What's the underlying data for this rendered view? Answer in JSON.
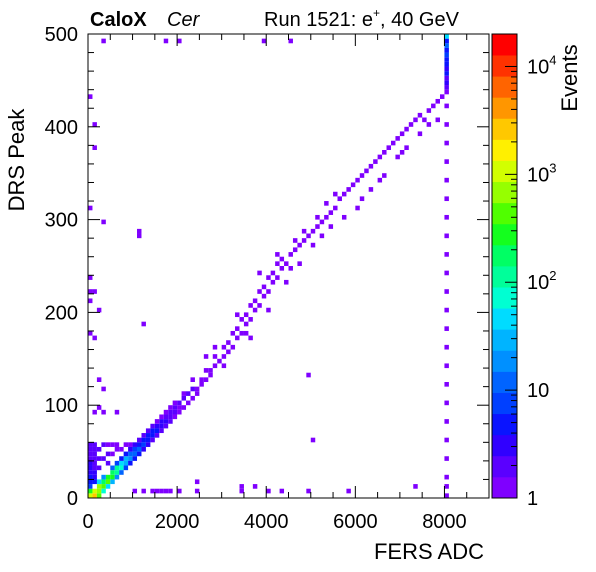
{
  "header": {
    "experiment": "CaloX",
    "channel": "Cer",
    "run_prefix": "Run 1521: e",
    "run_superscript": "+",
    "run_suffix": ", 40 GeV"
  },
  "chart_data": {
    "type": "heatmap",
    "xlabel": "FERS ADC",
    "ylabel": "DRS Peak",
    "zlabel": "Events",
    "xlim": [
      0,
      9000
    ],
    "ylim": [
      0,
      500
    ],
    "zlim": [
      1,
      20000
    ],
    "zscale": "log",
    "grid": false,
    "x_ticks": [
      "0",
      "2000",
      "4000",
      "6000",
      "8000"
    ],
    "x_tick_values": [
      0,
      2000,
      4000,
      6000,
      8000
    ],
    "y_ticks": [
      "0",
      "100",
      "200",
      "300",
      "400",
      "500"
    ],
    "y_tick_values": [
      0,
      100,
      200,
      300,
      400,
      500
    ],
    "z_ticks": [
      {
        "value": 1,
        "base": "1",
        "exp": ""
      },
      {
        "value": 10,
        "base": "10",
        "exp": ""
      },
      {
        "value": 100,
        "base": "10",
        "exp": "2"
      },
      {
        "value": 1000,
        "base": "10",
        "exp": "3"
      },
      {
        "value": 10000,
        "base": "10",
        "exp": "4"
      }
    ],
    "palette": [
      "#7f00ff",
      "#5a00ff",
      "#3000ff",
      "#0a14ff",
      "#0040ff",
      "#0064ff",
      "#0090ff",
      "#00b4ff",
      "#00dcff",
      "#00ffd2",
      "#00ff9a",
      "#00ff64",
      "#14ff1e",
      "#50ff00",
      "#96ff00",
      "#d2ff00",
      "#fff000",
      "#ffc800",
      "#ff9600",
      "#ff6400",
      "#ff3200",
      "#ff0000"
    ],
    "bin_size": [
      100,
      5
    ],
    "cells": [
      [
        0,
        0,
        900
      ],
      [
        0,
        5,
        300
      ],
      [
        100,
        0,
        3000
      ],
      [
        100,
        5,
        1200
      ],
      [
        200,
        0,
        500
      ],
      [
        200,
        5,
        800
      ],
      [
        200,
        10,
        600
      ],
      [
        300,
        10,
        400
      ],
      [
        300,
        15,
        200
      ],
      [
        400,
        15,
        350
      ],
      [
        400,
        20,
        300
      ],
      [
        500,
        20,
        250
      ],
      [
        500,
        25,
        150
      ],
      [
        600,
        25,
        120
      ],
      [
        600,
        30,
        100
      ],
      [
        700,
        30,
        60
      ],
      [
        700,
        35,
        40
      ],
      [
        800,
        35,
        30
      ],
      [
        800,
        40,
        25
      ],
      [
        900,
        40,
        15
      ],
      [
        900,
        45,
        10
      ],
      [
        1000,
        45,
        12
      ],
      [
        1000,
        50,
        8
      ],
      [
        1100,
        50,
        10
      ],
      [
        1100,
        55,
        6
      ],
      [
        1200,
        55,
        8
      ],
      [
        1200,
        60,
        6
      ],
      [
        1300,
        60,
        6
      ],
      [
        1300,
        65,
        5
      ],
      [
        1400,
        65,
        5
      ],
      [
        1400,
        70,
        4
      ],
      [
        1500,
        70,
        4
      ],
      [
        1500,
        75,
        3
      ],
      [
        1600,
        75,
        3
      ],
      [
        1600,
        80,
        3
      ],
      [
        1700,
        80,
        3
      ],
      [
        1700,
        85,
        2
      ],
      [
        1800,
        85,
        2
      ],
      [
        1800,
        90,
        2
      ],
      [
        1900,
        90,
        2
      ],
      [
        1900,
        95,
        2
      ],
      [
        2000,
        100,
        2
      ],
      [
        2100,
        105,
        2
      ],
      [
        2200,
        110,
        2
      ],
      [
        2300,
        115,
        2
      ],
      [
        300,
        5,
        60
      ],
      [
        400,
        10,
        40
      ],
      [
        500,
        15,
        30
      ],
      [
        200,
        15,
        40
      ],
      [
        300,
        20,
        20
      ],
      [
        600,
        20,
        15
      ],
      [
        500,
        30,
        10
      ],
      [
        700,
        25,
        12
      ],
      [
        800,
        30,
        8
      ],
      [
        900,
        35,
        6
      ],
      [
        600,
        35,
        8
      ],
      [
        700,
        40,
        6
      ],
      [
        1000,
        40,
        5
      ],
      [
        800,
        45,
        4
      ],
      [
        900,
        50,
        3
      ],
      [
        1100,
        45,
        4
      ],
      [
        1200,
        50,
        3
      ],
      [
        1000,
        55,
        3
      ],
      [
        1300,
        55,
        3
      ],
      [
        1100,
        60,
        2
      ],
      [
        1400,
        60,
        2
      ],
      [
        1200,
        65,
        2
      ],
      [
        1500,
        65,
        2
      ],
      [
        1600,
        70,
        2
      ],
      [
        1300,
        70,
        2
      ],
      [
        1700,
        75,
        2
      ],
      [
        1400,
        75,
        2
      ],
      [
        1800,
        80,
        2
      ],
      [
        1500,
        80,
        1
      ],
      [
        1900,
        85,
        1
      ],
      [
        1600,
        85,
        1
      ],
      [
        2000,
        90,
        1
      ],
      [
        2100,
        95,
        1
      ],
      [
        1700,
        90,
        1
      ],
      [
        2200,
        100,
        1
      ],
      [
        1800,
        95,
        1
      ],
      [
        2300,
        105,
        1
      ],
      [
        2400,
        110,
        1
      ],
      [
        2000,
        95,
        1
      ],
      [
        1900,
        100,
        1
      ],
      [
        0,
        10,
        8
      ],
      [
        0,
        15,
        5
      ],
      [
        0,
        20,
        4
      ],
      [
        0,
        25,
        3
      ],
      [
        0,
        30,
        3
      ],
      [
        0,
        35,
        3
      ],
      [
        0,
        40,
        2
      ],
      [
        0,
        45,
        2
      ],
      [
        0,
        50,
        2
      ],
      [
        0,
        55,
        2
      ],
      [
        100,
        15,
        5
      ],
      [
        100,
        20,
        3
      ],
      [
        100,
        25,
        3
      ],
      [
        100,
        30,
        2
      ],
      [
        100,
        35,
        2
      ],
      [
        100,
        40,
        2
      ],
      [
        100,
        45,
        2
      ],
      [
        100,
        50,
        2
      ],
      [
        100,
        55,
        2
      ],
      [
        200,
        30,
        2
      ],
      [
        200,
        40,
        2
      ],
      [
        200,
        50,
        2
      ],
      [
        300,
        40,
        2
      ],
      [
        300,
        55,
        2
      ],
      [
        400,
        35,
        2
      ],
      [
        400,
        45,
        2
      ],
      [
        500,
        45,
        1
      ],
      [
        600,
        50,
        1
      ],
      [
        700,
        50,
        1
      ],
      [
        800,
        55,
        1
      ],
      [
        900,
        55,
        1
      ],
      [
        400,
        55,
        1
      ],
      [
        500,
        55,
        1
      ],
      [
        600,
        55,
        1
      ],
      [
        2400,
        115,
        1
      ],
      [
        2500,
        120,
        1
      ],
      [
        2600,
        125,
        1
      ],
      [
        2500,
        125,
        1
      ],
      [
        2700,
        130,
        1
      ],
      [
        2600,
        135,
        1
      ],
      [
        2800,
        140,
        1
      ],
      [
        2700,
        135,
        1
      ],
      [
        2900,
        145,
        1
      ],
      [
        3000,
        150,
        1
      ],
      [
        2800,
        150,
        1
      ],
      [
        3100,
        155,
        1
      ],
      [
        3000,
        160,
        1
      ],
      [
        3200,
        160,
        1
      ],
      [
        3100,
        165,
        1
      ],
      [
        3300,
        170,
        1
      ],
      [
        3200,
        175,
        1
      ],
      [
        3400,
        175,
        1
      ],
      [
        3300,
        180,
        1
      ],
      [
        3500,
        185,
        1
      ],
      [
        3400,
        190,
        1
      ],
      [
        3600,
        190,
        1
      ],
      [
        3500,
        195,
        1
      ],
      [
        3700,
        200,
        1
      ],
      [
        3600,
        205,
        1
      ],
      [
        3800,
        205,
        1
      ],
      [
        3700,
        210,
        1
      ],
      [
        3900,
        215,
        1
      ],
      [
        3800,
        220,
        1
      ],
      [
        4000,
        220,
        1
      ],
      [
        3900,
        225,
        1
      ],
      [
        4100,
        230,
        1
      ],
      [
        4000,
        235,
        1
      ],
      [
        4200,
        235,
        1
      ],
      [
        4100,
        240,
        1
      ],
      [
        4300,
        245,
        1
      ],
      [
        4200,
        250,
        1
      ],
      [
        4400,
        250,
        1
      ],
      [
        4300,
        255,
        1
      ],
      [
        4500,
        260,
        1
      ],
      [
        4600,
        265,
        1
      ],
      [
        4700,
        270,
        1
      ],
      [
        4800,
        275,
        1
      ],
      [
        4600,
        275,
        1
      ],
      [
        4900,
        280,
        1
      ],
      [
        5000,
        285,
        1
      ],
      [
        4800,
        285,
        1
      ],
      [
        5100,
        290,
        1
      ],
      [
        5200,
        295,
        1
      ],
      [
        5300,
        300,
        1
      ],
      [
        5100,
        300,
        1
      ],
      [
        5400,
        305,
        1
      ],
      [
        5500,
        310,
        1
      ],
      [
        5300,
        315,
        1
      ],
      [
        5600,
        320,
        1
      ],
      [
        5700,
        325,
        1
      ],
      [
        5500,
        325,
        1
      ],
      [
        5800,
        330,
        1
      ],
      [
        5900,
        335,
        1
      ],
      [
        6000,
        340,
        1
      ],
      [
        6100,
        345,
        1
      ],
      [
        6200,
        350,
        1
      ],
      [
        6300,
        355,
        1
      ],
      [
        6400,
        360,
        1
      ],
      [
        6500,
        365,
        1
      ],
      [
        6600,
        370,
        1
      ],
      [
        6700,
        375,
        1
      ],
      [
        6800,
        380,
        1
      ],
      [
        6900,
        385,
        1
      ],
      [
        7000,
        390,
        1
      ],
      [
        7100,
        395,
        1
      ],
      [
        7200,
        400,
        1
      ],
      [
        7300,
        405,
        1
      ],
      [
        7400,
        410,
        1
      ],
      [
        7600,
        415,
        1
      ],
      [
        7700,
        420,
        1
      ],
      [
        7800,
        425,
        1
      ],
      [
        7900,
        430,
        1
      ],
      [
        8000,
        435,
        1
      ],
      [
        2800,
        160,
        1
      ],
      [
        3300,
        195,
        1
      ],
      [
        3500,
        175,
        1
      ],
      [
        3800,
        240,
        1
      ],
      [
        4200,
        260,
        1
      ],
      [
        4500,
        245,
        1
      ],
      [
        5000,
        270,
        1
      ],
      [
        5200,
        280,
        1
      ],
      [
        5400,
        290,
        1
      ],
      [
        5700,
        300,
        1
      ],
      [
        6100,
        320,
        1
      ],
      [
        6300,
        330,
        1
      ],
      [
        6600,
        345,
        1
      ],
      [
        6900,
        365,
        1
      ],
      [
        7100,
        375,
        1
      ],
      [
        7400,
        390,
        1
      ],
      [
        7600,
        400,
        1
      ],
      [
        7800,
        405,
        1
      ],
      [
        2100,
        110,
        1
      ],
      [
        2300,
        125,
        1
      ],
      [
        2600,
        150,
        1
      ],
      [
        3000,
        140,
        1
      ],
      [
        3600,
        170,
        1
      ],
      [
        4000,
        200,
        1
      ],
      [
        4400,
        230,
        1
      ],
      [
        4700,
        250,
        1
      ],
      [
        6000,
        310,
        1
      ],
      [
        6500,
        340,
        1
      ],
      [
        7000,
        370,
        1
      ],
      [
        7500,
        405,
        1
      ],
      [
        8000,
        0,
        1
      ],
      [
        8000,
        10,
        1
      ],
      [
        8000,
        20,
        1
      ],
      [
        8000,
        40,
        1
      ],
      [
        8000,
        60,
        1
      ],
      [
        8000,
        80,
        1
      ],
      [
        8000,
        100,
        1
      ],
      [
        8000,
        120,
        1
      ],
      [
        8000,
        140,
        1
      ],
      [
        8000,
        160,
        1
      ],
      [
        8000,
        180,
        1
      ],
      [
        8000,
        200,
        1
      ],
      [
        8000,
        220,
        1
      ],
      [
        8000,
        240,
        1
      ],
      [
        8000,
        260,
        1
      ],
      [
        8000,
        280,
        1
      ],
      [
        8000,
        300,
        1
      ],
      [
        8000,
        320,
        1
      ],
      [
        8000,
        340,
        1
      ],
      [
        8000,
        360,
        1
      ],
      [
        8000,
        380,
        1
      ],
      [
        8000,
        400,
        1
      ],
      [
        8000,
        420,
        1
      ],
      [
        8000,
        440,
        2
      ],
      [
        8000,
        445,
        3
      ],
      [
        8000,
        450,
        2
      ],
      [
        8000,
        455,
        4
      ],
      [
        8000,
        460,
        3
      ],
      [
        8000,
        465,
        5
      ],
      [
        8000,
        470,
        6
      ],
      [
        8000,
        475,
        8
      ],
      [
        8000,
        480,
        5
      ],
      [
        8000,
        485,
        10
      ],
      [
        8000,
        490,
        6
      ],
      [
        8000,
        495,
        40
      ],
      [
        1000,
        5,
        1
      ],
      [
        1200,
        5,
        1
      ],
      [
        1400,
        5,
        1
      ],
      [
        1500,
        5,
        1
      ],
      [
        1600,
        5,
        1
      ],
      [
        1700,
        5,
        1
      ],
      [
        1800,
        5,
        1
      ],
      [
        2000,
        5,
        1
      ],
      [
        2400,
        5,
        1
      ],
      [
        3400,
        5,
        1
      ],
      [
        4000,
        5,
        1
      ],
      [
        4300,
        5,
        1
      ],
      [
        4900,
        5,
        1
      ],
      [
        5800,
        5,
        1
      ],
      [
        7300,
        10,
        1
      ],
      [
        2400,
        15,
        1
      ],
      [
        3400,
        10,
        1
      ],
      [
        3700,
        10,
        1
      ],
      [
        5000,
        60,
        1
      ],
      [
        4900,
        130,
        1
      ],
      [
        300,
        90,
        1
      ],
      [
        300,
        295,
        1
      ],
      [
        1100,
        280,
        1
      ],
      [
        1200,
        185,
        1
      ],
      [
        1100,
        285,
        1
      ],
      [
        200,
        125,
        1
      ],
      [
        300,
        115,
        1
      ],
      [
        200,
        95,
        1
      ],
      [
        600,
        90,
        1
      ],
      [
        0,
        175,
        1
      ],
      [
        0,
        210,
        1
      ],
      [
        0,
        220,
        1
      ],
      [
        100,
        220,
        1
      ],
      [
        0,
        235,
        1
      ],
      [
        100,
        90,
        1
      ],
      [
        0,
        310,
        1
      ],
      [
        300,
        490,
        1
      ],
      [
        1700,
        490,
        1
      ],
      [
        2000,
        490,
        1
      ],
      [
        3900,
        490,
        1
      ],
      [
        4500,
        490,
        1
      ],
      [
        0,
        430,
        1
      ],
      [
        100,
        375,
        1
      ],
      [
        100,
        400,
        1
      ],
      [
        100,
        170,
        1
      ],
      [
        200,
        200,
        1
      ]
    ]
  }
}
